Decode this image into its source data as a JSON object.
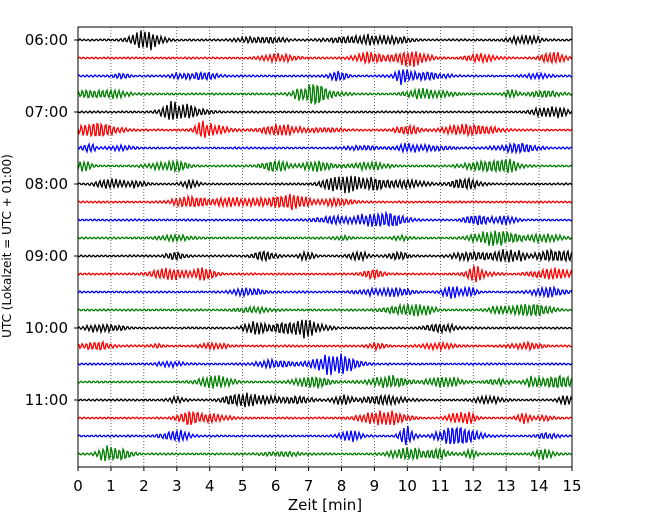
{
  "chart_data": {
    "type": "line",
    "title": "",
    "xlabel": "Zeit  [min]",
    "ylabel": "UTC (Lokalzeit = UTC + 01:00)",
    "xlim": [
      0,
      15
    ],
    "x_ticks": [
      "0",
      "1",
      "2",
      "3",
      "4",
      "5",
      "6",
      "7",
      "8",
      "9",
      "10",
      "11",
      "12",
      "13",
      "14",
      "15"
    ],
    "y_ticks": [
      "06:00",
      "07:00",
      "08:00",
      "09:00",
      "10:00",
      "11:00"
    ],
    "rows_per_hour": 4,
    "row_minutes": 15,
    "start_time": "06:00",
    "row_count": 24,
    "grid": {
      "x": true,
      "y": false,
      "style": "dotted"
    },
    "legend": false,
    "series_colors": [
      "#000000",
      "#ff0000",
      "#0000ff",
      "#008000"
    ]
  }
}
